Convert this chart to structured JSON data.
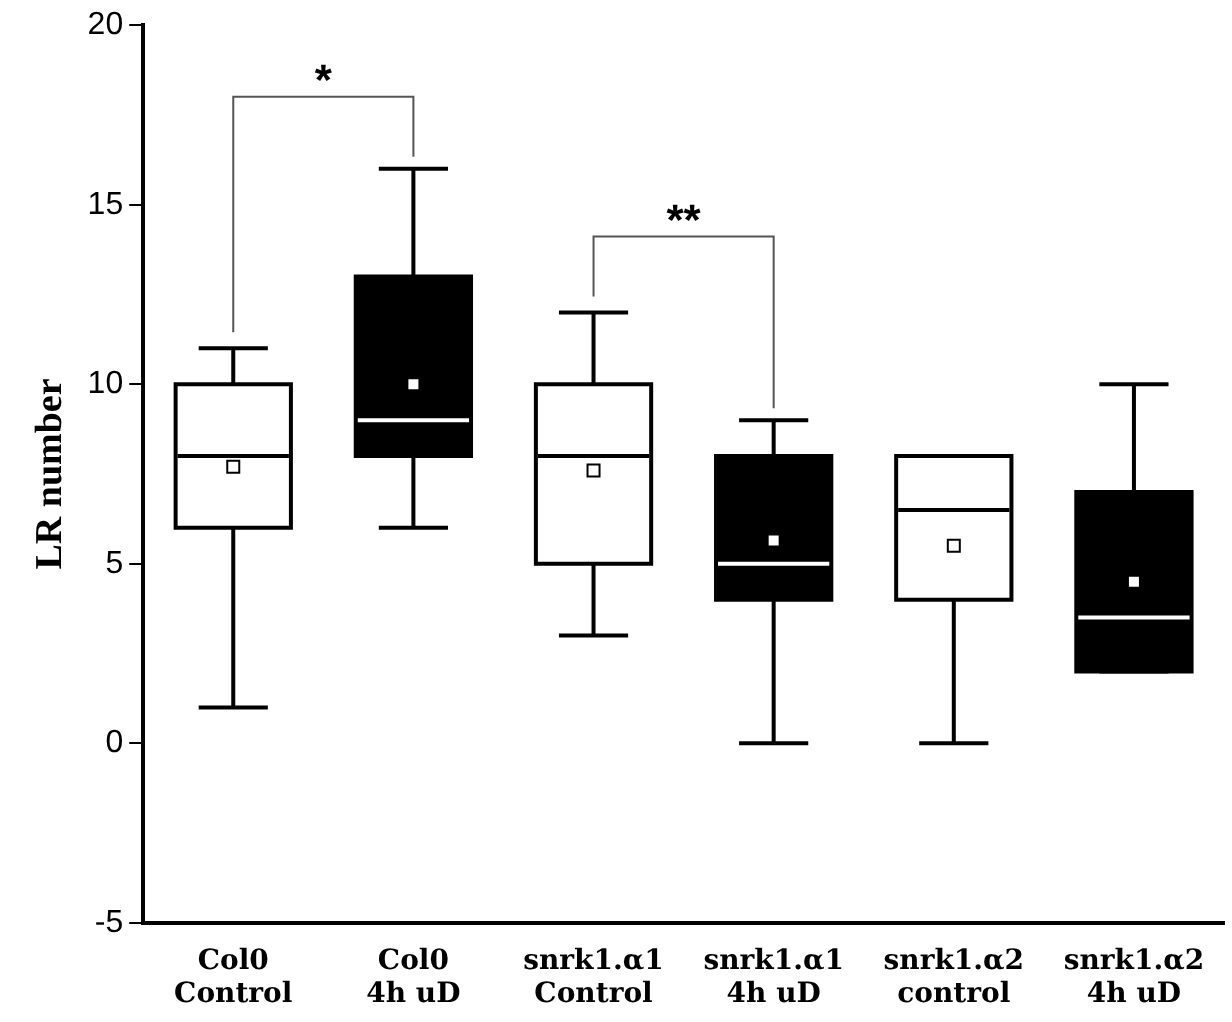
{
  "chart_data": {
    "type": "box",
    "ylabel": "LR number",
    "categories": [
      "Col0\nControl",
      "Col0\n4h uD",
      "snrk1.α1\nControl",
      "snrk1.α1\n4h uD",
      "snrk1.α2\ncontrol",
      "snrk1.α2\n4h uD"
    ],
    "boxes": [
      {
        "low": 1,
        "q1": 6,
        "median": 8,
        "q3": 10,
        "high": 11,
        "mean": 7.7
      },
      {
        "low": 6,
        "q1": 8,
        "median": 9,
        "q3": 13,
        "high": 16,
        "mean": 10
      },
      {
        "low": 3,
        "q1": 5,
        "median": 8,
        "q3": 10,
        "high": 12,
        "mean": 7.6
      },
      {
        "low": 0,
        "q1": 4,
        "median": 5,
        "q3": 8,
        "high": 9,
        "mean": 5.65
      },
      {
        "low": 0,
        "q1": 4,
        "median": 6.5,
        "q3": 8,
        "high": 8,
        "mean": 5.5
      },
      {
        "low": 2,
        "q1": 2,
        "median": 3.5,
        "q3": 7,
        "high": 10,
        "mean": 4.5
      }
    ],
    "colors": [
      "#ffffff",
      "#000000",
      "#ffffff",
      "#000000",
      "#ffffff",
      "#000000"
    ],
    "ylim": [
      -5,
      20
    ],
    "yticks": [
      -5,
      0,
      5,
      10,
      15,
      20
    ],
    "grid": false,
    "legend": false,
    "annotations": [
      "*",
      "**"
    ]
  }
}
